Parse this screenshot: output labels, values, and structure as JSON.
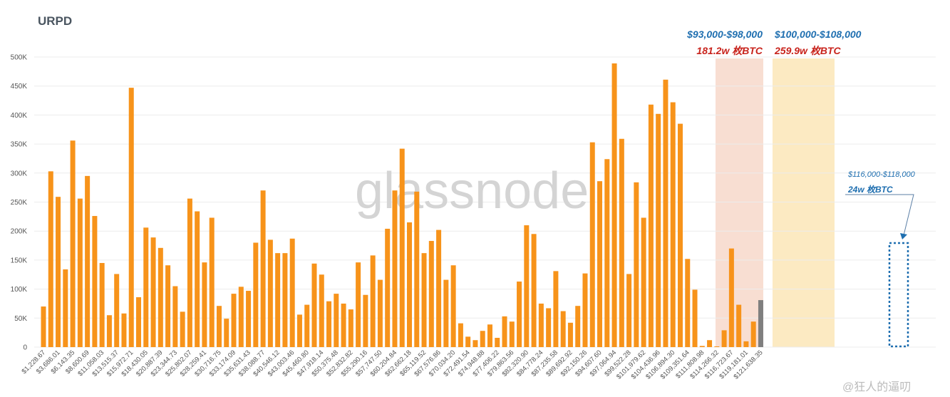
{
  "chart_data": {
    "type": "bar",
    "title": "URPD",
    "watermark": "glassnode",
    "source_mark": "@狂人的逼叨",
    "ylim": [
      0,
      500000
    ],
    "y_ticks": [
      0,
      50000,
      100000,
      150000,
      200000,
      250000,
      300000,
      350000,
      400000,
      450000,
      500000
    ],
    "y_tick_labels": [
      "0",
      "50K",
      "100K",
      "150K",
      "200K",
      "250K",
      "300K",
      "350K",
      "400K",
      "450K",
      "500K"
    ],
    "grid": true,
    "x_tick_labels": [
      "$1,228.67",
      "$3,686.01",
      "$6,143.35",
      "$8,600.69",
      "$11,058.03",
      "$13,515.37",
      "$15,972.71",
      "$18,430.05",
      "$20,887.39",
      "$23,344.73",
      "$25,802.07",
      "$28,259.41",
      "$30,716.75",
      "$33,174.09",
      "$35,631.43",
      "$38,088.77",
      "$40,546.12",
      "$43,003.46",
      "$45,460.80",
      "$47,918.14",
      "$50,375.48",
      "$52,832.82",
      "$55,290.16",
      "$57,747.50",
      "$60,204.84",
      "$62,662.18",
      "$65,119.52",
      "$67,576.86",
      "$70,034.20",
      "$72,491.54",
      "$74,948.88",
      "$77,406.22",
      "$79,863.56",
      "$82,320.90",
      "$84,778.24",
      "$87,235.58",
      "$89,692.92",
      "$92,150.26",
      "$94,607.60",
      "$97,064.94",
      "$99,522.28",
      "$101,979.62",
      "$104,436.96",
      "$106,894.30",
      "$109,351.64",
      "$111,808.98",
      "$114,266.32",
      "$116,723.67",
      "$119,181.01",
      "$121,638.35"
    ],
    "values": [
      70000,
      303000,
      259000,
      134000,
      356000,
      256000,
      295000,
      226000,
      145000,
      55000,
      126000,
      58000,
      447000,
      86000,
      206000,
      189000,
      171000,
      141000,
      105000,
      61000,
      256000,
      234000,
      146000,
      223000,
      71000,
      49000,
      92000,
      104000,
      97000,
      180000,
      270000,
      185000,
      162000,
      162000,
      187000,
      56000,
      73000,
      144000,
      125000,
      79000,
      92000,
      75000,
      65000,
      146000,
      90000,
      158000,
      116000,
      204000,
      270000,
      342000,
      215000,
      268000,
      162000,
      183000,
      202000,
      116000,
      141000,
      41000,
      18000,
      12000,
      28000,
      39000,
      16000,
      53000,
      44000,
      113000,
      210000,
      195000,
      75000,
      67000,
      131000,
      62000,
      42000,
      71000,
      127000,
      353000,
      286000,
      324000,
      489000,
      359000,
      126000,
      284000,
      223000,
      418000,
      402000,
      461000,
      422000,
      385000,
      152000,
      99000,
      2000,
      12000,
      1000,
      29000,
      170000,
      73000,
      10000,
      44000,
      81000
    ],
    "highlight_color_last": "#7f7f7f",
    "bar_color": "#f7931a",
    "series": [
      {
        "values_ref": "values"
      }
    ],
    "annotations": {
      "zone1": {
        "range": "$93,000-$98,000",
        "amount": "181.2w 枚BTC",
        "color": "#f6d3c3"
      },
      "zone2": {
        "range": "$100,000-$108,000",
        "amount": "259.9w 枚BTC",
        "color": "#fbe3ae"
      },
      "zone3": {
        "range": "$116,000-$118,000",
        "amount": "24w 枚BTC"
      }
    }
  }
}
